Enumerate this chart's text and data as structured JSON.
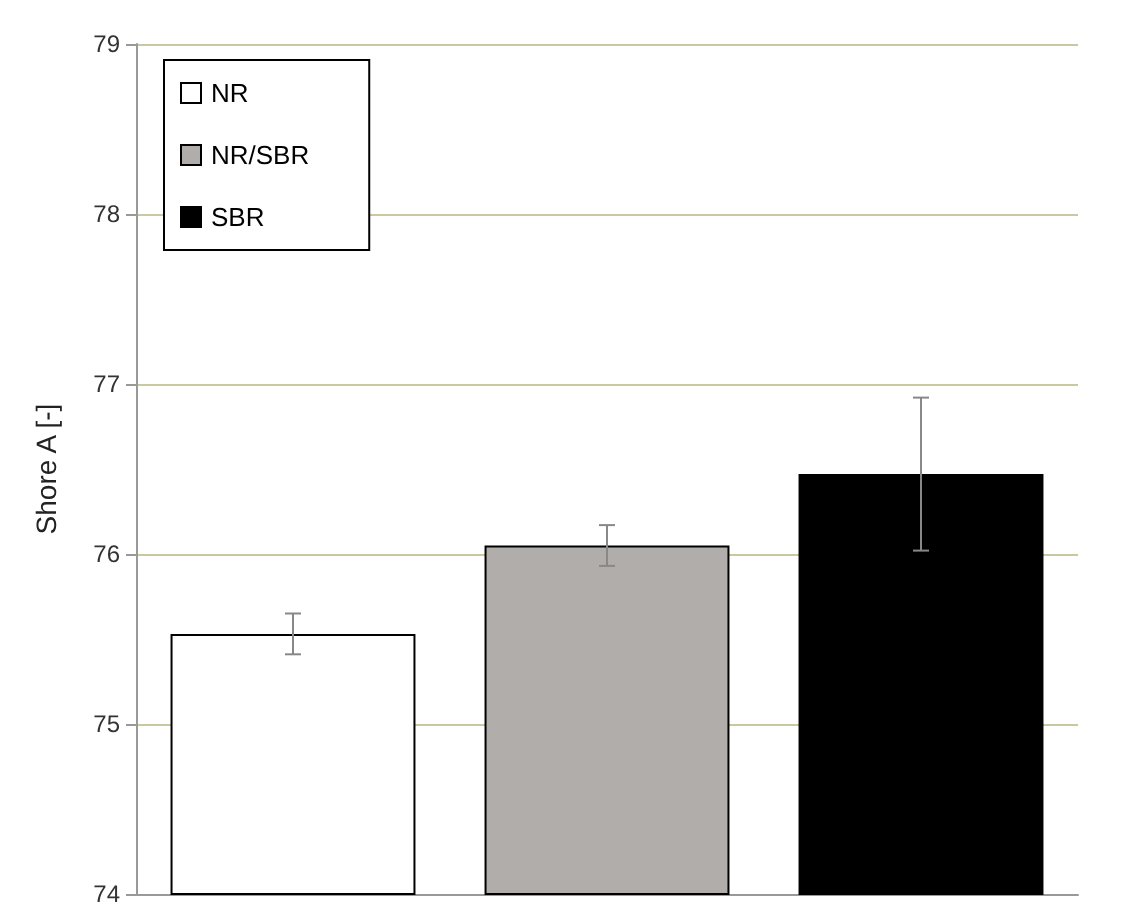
{
  "chart_data": {
    "type": "bar",
    "ylabel": "Shore A [-]",
    "categories": [
      null,
      null,
      null
    ],
    "series": [
      {
        "name": "NR",
        "color": "#ffffff",
        "values": [
          75.53,
          null,
          null
        ],
        "errors": [
          0.12,
          null,
          null
        ]
      },
      {
        "name": "NR/SBR",
        "color": "#b0adab",
        "values": [
          null,
          76.05,
          null
        ],
        "errors": [
          null,
          0.12,
          null
        ]
      },
      {
        "name": "SBR",
        "color": "#000000",
        "values": [
          null,
          null,
          76.47
        ],
        "errors": [
          null,
          null,
          0.45
        ]
      }
    ],
    "ylim": [
      74,
      79
    ],
    "yticks": [
      74,
      75,
      76,
      77,
      78,
      79
    ],
    "grid": "y",
    "legend": "top left"
  }
}
